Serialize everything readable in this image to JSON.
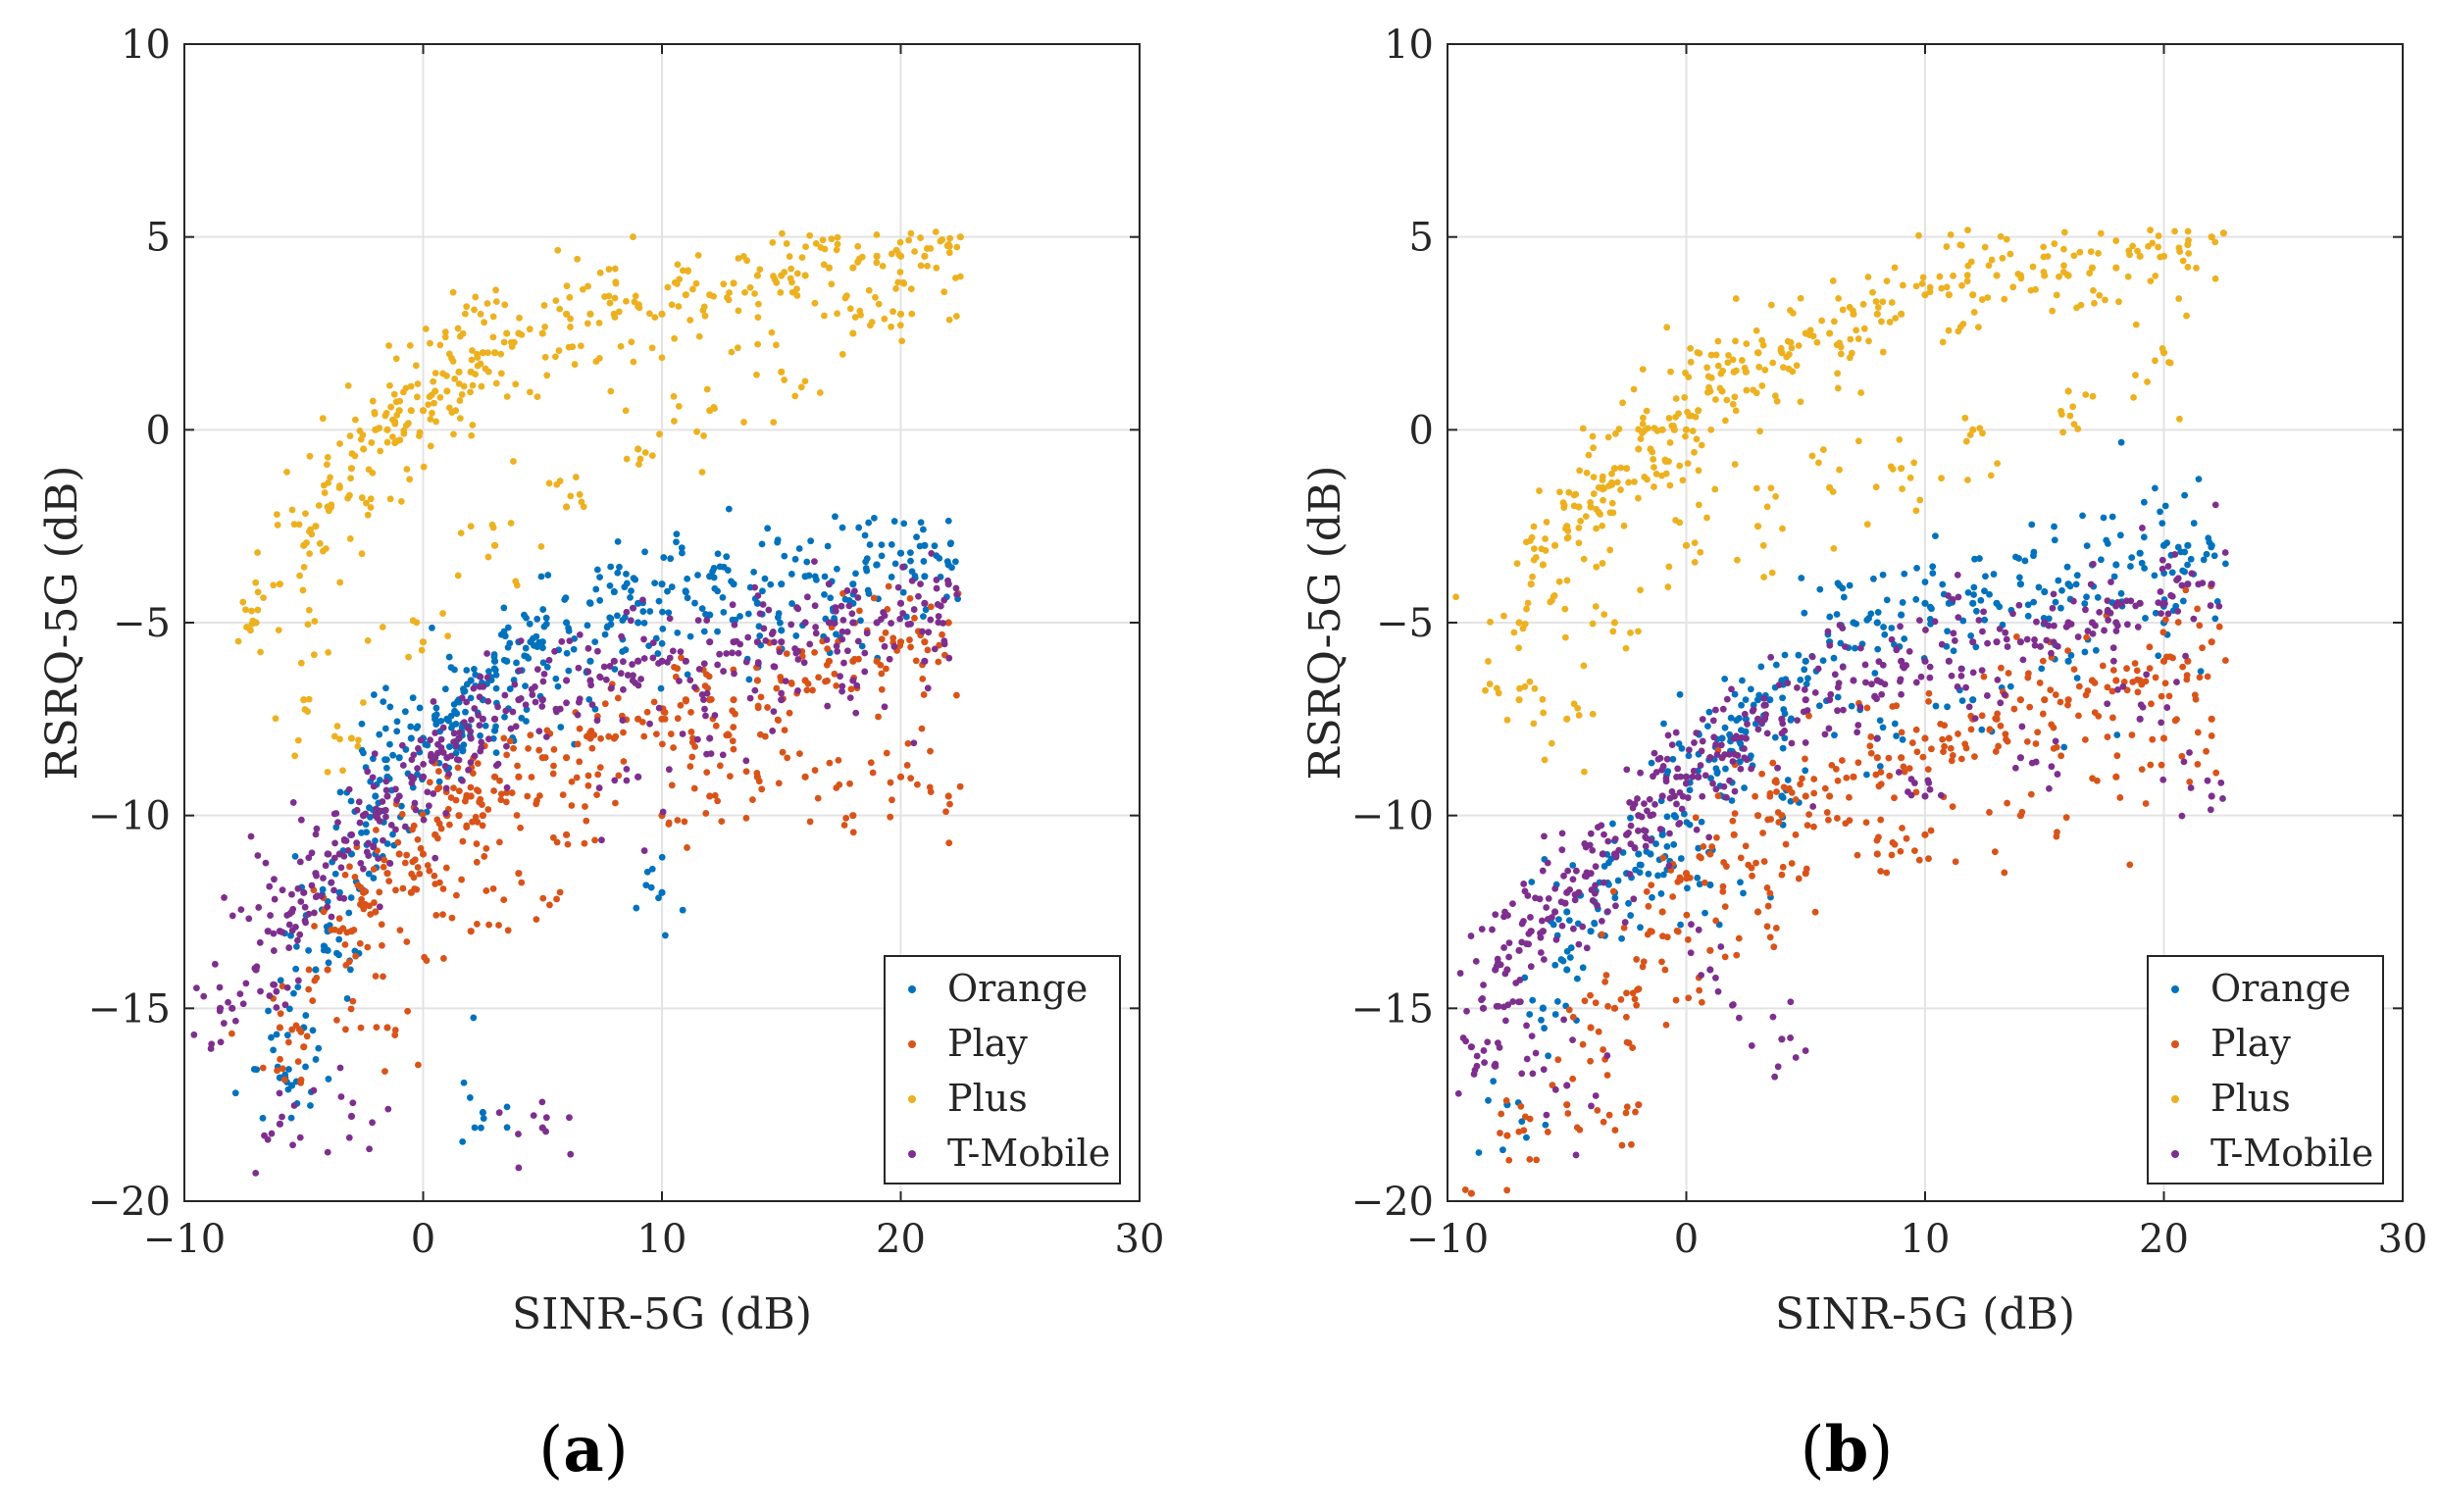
{
  "colors": {
    "Orange": "#0072BD",
    "Play": "#D95319",
    "Plus": "#EDB120",
    "T-Mobile": "#7E2F8E",
    "axis": "#262626",
    "grid": "#e3e3e3"
  },
  "chart_data": [
    {
      "panel_label": "(a)",
      "panel_letter": "a",
      "type": "scatter",
      "xlabel": "SINR-5G  (dB)",
      "ylabel": "RSRQ-5G  (dB)",
      "xlim": [
        -10,
        30
      ],
      "ylim": [
        -20,
        10
      ],
      "xticks": [
        -10,
        0,
        10,
        20,
        30
      ],
      "yticks": [
        -20,
        -15,
        -10,
        -5,
        0,
        5,
        10
      ],
      "xtick_labels": [
        "−10",
        "0",
        "10",
        "20",
        "30"
      ],
      "ytick_labels": [
        "−20",
        "−15",
        "−10",
        "−5",
        "0",
        "5",
        "10"
      ],
      "grid": true,
      "legend_position": "bottom-right",
      "legend": [
        "Orange",
        "Play",
        "Plus",
        "T-Mobile"
      ],
      "series": [
        {
          "name": "Orange",
          "x": [
            -6,
            -5.5,
            -5,
            -4.5,
            -4,
            -3.5,
            -3,
            -2.5,
            -2,
            -1.5,
            -1,
            -0.5,
            0,
            0.5,
            1,
            1.5,
            2,
            2.5,
            3,
            3.5,
            4,
            4.5,
            5,
            6,
            7,
            8,
            9,
            10,
            11,
            12,
            13,
            14,
            15,
            16,
            17,
            18,
            19,
            20,
            21,
            22,
            2.5,
            10,
            -4,
            -2,
            1,
            3,
            5,
            7,
            9,
            12,
            15,
            18,
            21
          ],
          "y": [
            -16.8,
            -17,
            -15.5,
            -14,
            -13,
            -12,
            -11,
            -10,
            -9.5,
            -9,
            -8.5,
            -8,
            -8,
            -7.5,
            -7.5,
            -7,
            -6.5,
            -7,
            -6,
            -6,
            -5.5,
            -5.5,
            -5.5,
            -5,
            -4.5,
            -4.2,
            -4.5,
            -4,
            -4.2,
            -3.8,
            -4,
            -4.5,
            -4,
            -3.8,
            -4,
            -4,
            -3.5,
            -3.2,
            -3,
            -3.5,
            -17.7,
            -12,
            -13.5,
            -11,
            -8.8,
            -7.8,
            -7,
            -6,
            -5,
            -4.8,
            -5.2,
            -4.5,
            -3.8
          ]
        },
        {
          "name": "Play",
          "x": [
            -6,
            -5,
            -4,
            -3.5,
            -3,
            -2.5,
            -2,
            -1.5,
            -1,
            -0.5,
            0,
            0.5,
            1,
            1.5,
            2,
            2.5,
            3,
            4,
            5,
            6,
            7,
            8,
            9,
            10,
            11,
            12,
            13,
            14,
            15,
            16,
            17,
            18,
            19,
            20,
            21,
            22,
            -1.5,
            2,
            4,
            6,
            10,
            12,
            14,
            16,
            18,
            20,
            22
          ],
          "y": [
            -15.5,
            -16,
            -14,
            -13,
            -13,
            -12,
            -12.5,
            -11.5,
            -11,
            -12,
            -11,
            -10.5,
            -10,
            -10,
            -9.5,
            -10,
            -9,
            -9,
            -8.5,
            -8.5,
            -8,
            -8,
            -7.5,
            -7.5,
            -7,
            -7,
            -7,
            -6.5,
            -6.5,
            -6.5,
            -6,
            -6,
            -6,
            -5.5,
            -5.5,
            -5,
            -15.5,
            -13,
            -11.5,
            -10.5,
            -10,
            -9.5,
            -9,
            -9,
            -10,
            -9,
            -9.5
          ]
        },
        {
          "name": "Plus",
          "x": [
            -7,
            -6,
            -5,
            -4.5,
            -4,
            -3.5,
            -3,
            -2.5,
            -2,
            -1.5,
            -1,
            -0.5,
            0,
            0.5,
            1,
            1.5,
            2,
            2.5,
            3,
            3.5,
            4,
            5,
            6,
            7,
            8,
            9,
            10,
            11,
            12,
            13,
            14,
            15,
            16,
            17,
            18,
            19,
            20,
            21,
            22,
            22.5,
            -5,
            -3,
            0,
            3,
            6,
            9,
            12,
            15,
            18,
            20
          ],
          "y": [
            -5,
            -4,
            -3,
            -2.5,
            -2,
            -1.5,
            -1,
            -0.5,
            0,
            0,
            0.5,
            0.5,
            0.5,
            1,
            1,
            1.5,
            1.5,
            2,
            2,
            2.5,
            2.5,
            2.5,
            3,
            3,
            3,
            3.2,
            3,
            3.5,
            3.5,
            3.8,
            4,
            4,
            4,
            4.2,
            4.2,
            4.5,
            4.5,
            4.5,
            4.8,
            5,
            -7,
            -8,
            -5.5,
            -3,
            -2,
            -0.5,
            0.5,
            1.5,
            2.5,
            3
          ]
        },
        {
          "name": "T-Mobile",
          "x": [
            -8.5,
            -8,
            -7,
            -6.5,
            -6,
            -5.5,
            -5,
            -4.5,
            -4,
            -3.5,
            -3,
            -2.5,
            -2,
            -1.5,
            -1,
            -0.5,
            0,
            0.5,
            1,
            1.5,
            2,
            2.5,
            3,
            4,
            5,
            6,
            7,
            8,
            9,
            10,
            11,
            12,
            13,
            14,
            15,
            16,
            17,
            18,
            19,
            20,
            21,
            22,
            -6,
            -3,
            5,
            9,
            12,
            15,
            18,
            21
          ],
          "y": [
            -15,
            -15,
            -14,
            -13,
            -13,
            -12.5,
            -12,
            -11.5,
            -11,
            -11,
            -10.5,
            -10,
            -10,
            -9.5,
            -9.5,
            -9,
            -9,
            -8.5,
            -8.5,
            -8,
            -8,
            -7.5,
            -7.5,
            -7,
            -7,
            -6.5,
            -6.5,
            -6,
            -6,
            -6,
            -6,
            -5.5,
            -5.5,
            -5.5,
            -5.5,
            -5,
            -5,
            -5,
            -5,
            -4.5,
            -4.5,
            -4,
            -18,
            -17.8,
            -18.1,
            -9,
            -8,
            -7,
            -6.5,
            -6
          ]
        }
      ]
    },
    {
      "panel_label": "(b)",
      "panel_letter": "b",
      "type": "scatter",
      "xlabel": "SINR-5G  (dB)",
      "ylabel": "RSRQ-5G  (dB)",
      "xlim": [
        -10,
        30
      ],
      "ylim": [
        -20,
        10
      ],
      "xticks": [
        -10,
        0,
        10,
        20,
        30
      ],
      "yticks": [
        -20,
        -15,
        -10,
        -5,
        0,
        5,
        10
      ],
      "xtick_labels": [
        "−10",
        "0",
        "10",
        "20",
        "30"
      ],
      "ytick_labels": [
        "−20",
        "−15",
        "−10",
        "−5",
        "0",
        "5",
        "10"
      ],
      "grid": true,
      "legend_position": "bottom-right",
      "legend": [
        "Orange",
        "Play",
        "Plus",
        "T-Mobile"
      ],
      "series": [
        {
          "name": "Orange",
          "x": [
            -7.5,
            -6,
            -5,
            -4,
            -3,
            -2.5,
            -2,
            -1.5,
            -1,
            -0.5,
            0,
            0.5,
            1,
            1.5,
            2,
            2.5,
            3,
            3.5,
            4,
            5,
            6,
            7,
            8,
            9,
            10,
            11,
            12,
            13,
            14,
            15,
            16,
            17,
            18,
            19,
            20,
            21,
            22,
            -5,
            1,
            4,
            8,
            12,
            16,
            20
          ],
          "y": [
            -17.5,
            -15,
            -14,
            -13,
            -12,
            -11.5,
            -11,
            -11,
            -10.5,
            -10,
            -9,
            -9,
            -8.5,
            -8,
            -8,
            -7.5,
            -7,
            -7,
            -6.5,
            -6,
            -5.5,
            -5,
            -5,
            -4.8,
            -4.5,
            -4.5,
            -4.5,
            -4.5,
            -4,
            -4.2,
            -4,
            -3.5,
            -3.5,
            -3.2,
            -3,
            -3,
            -3,
            -12.5,
            -11.8,
            -9.5,
            -8,
            -7,
            -6,
            -5
          ]
        },
        {
          "name": "Play",
          "x": [
            -9,
            -7.5,
            -5,
            -4,
            -3,
            -2,
            -1.5,
            -1,
            0,
            1,
            2,
            3,
            4,
            5,
            6,
            7,
            8,
            9,
            10,
            11,
            12,
            13,
            14,
            15,
            16,
            17,
            18,
            19,
            20,
            21,
            22,
            -2,
            1,
            3,
            5,
            8,
            10,
            14,
            18,
            20,
            22
          ],
          "y": [
            -19.8,
            -18.3,
            -17.5,
            -15.5,
            -15,
            -14.5,
            -13,
            -12.5,
            -11.5,
            -11,
            -10.5,
            -10,
            -10,
            -9.5,
            -9.5,
            -9,
            -8.5,
            -8.5,
            -8,
            -8,
            -7.5,
            -7.5,
            -7,
            -7,
            -7,
            -6.5,
            -6.5,
            -6.5,
            -6,
            -6,
            -5.5,
            -17.5,
            -13.5,
            -12.5,
            -11.5,
            -11,
            -10.5,
            -10,
            -9,
            -8,
            -7.5
          ]
        },
        {
          "name": "Plus",
          "x": [
            -7,
            -6.5,
            -6,
            -5.5,
            -5,
            -4.5,
            -4,
            -3.5,
            -3,
            -2.5,
            -2,
            -1.5,
            -1,
            -0.5,
            0,
            0.5,
            1,
            1.5,
            2,
            2.5,
            3,
            4,
            5,
            6,
            7,
            8,
            9,
            10,
            11,
            12,
            13,
            14,
            15,
            16,
            17,
            18,
            19,
            20,
            21,
            22,
            -7,
            -5,
            -3,
            0,
            3,
            6,
            9,
            12,
            16,
            20,
            22.5
          ],
          "y": [
            -5,
            -4,
            -3.5,
            -3,
            -2.5,
            -2,
            -2,
            -1.5,
            -1,
            -1,
            -0.5,
            -0.5,
            0,
            0,
            0,
            0.5,
            1,
            1,
            1.5,
            1.5,
            2,
            2,
            2.5,
            2.5,
            3,
            3,
            3,
            3.5,
            3.5,
            3.5,
            4,
            4,
            4,
            4,
            4.2,
            4.2,
            4.5,
            4.5,
            4.8,
            5,
            -7,
            -7.5,
            -5,
            -3,
            -2.5,
            -1.5,
            -1,
            0,
            1,
            2,
            5.1
          ]
        },
        {
          "name": "T-Mobile",
          "x": [
            -9,
            -8.5,
            -8,
            -7.5,
            -7,
            -6.5,
            -6,
            -5.5,
            -5,
            -4.5,
            -4,
            -3.5,
            -3,
            -2.5,
            -2,
            -1.5,
            -1,
            -0.5,
            0,
            0.5,
            1,
            1.5,
            2,
            2.5,
            3,
            4,
            5,
            6,
            7,
            8,
            9,
            10,
            11,
            12,
            13,
            14,
            15,
            16,
            17,
            18,
            19,
            20,
            21,
            22,
            -8,
            -5,
            1,
            4,
            10,
            14,
            19,
            22
          ],
          "y": [
            -16,
            -15,
            -14,
            -14,
            -13.5,
            -13,
            -13,
            -12.5,
            -12,
            -12,
            -11.5,
            -11,
            -11,
            -10.5,
            -10,
            -10,
            -9.5,
            -9.5,
            -9,
            -9,
            -8.5,
            -8.5,
            -8,
            -8,
            -7.5,
            -7.5,
            -7,
            -7,
            -6.5,
            -6.5,
            -6,
            -6,
            -6,
            -5.5,
            -5.5,
            -5.5,
            -5,
            -5,
            -5,
            -5,
            -4.5,
            -4.5,
            -4,
            -4,
            -16.5,
            -17,
            -14,
            -15.8,
            -9.5,
            -8.5,
            -7.5,
            -9.5
          ]
        }
      ]
    }
  ]
}
